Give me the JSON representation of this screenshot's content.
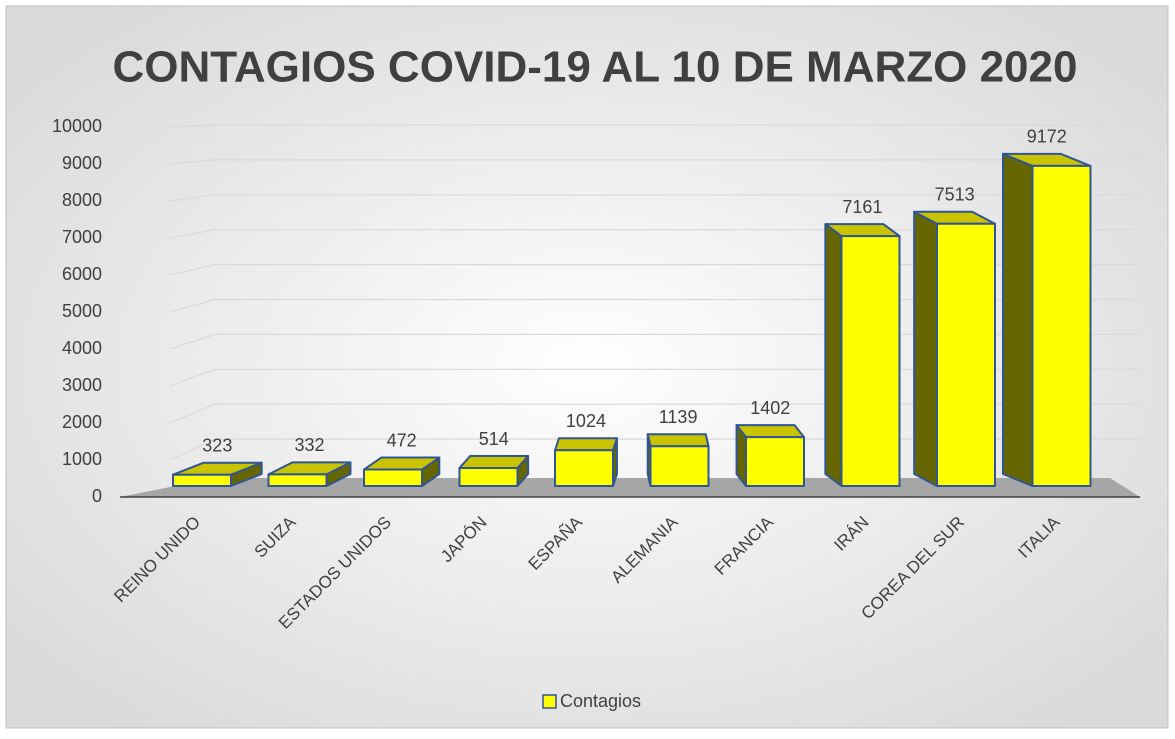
{
  "chart_data": {
    "type": "bar3d",
    "title": "CONTAGIOS COVID-19 AL 10 DE MARZO 2020",
    "categories": [
      "REINO UNIDO",
      "SUIZA",
      "ESTADOS UNIDOS",
      "JAPÓN",
      "ESPAÑA",
      "ALEMANIA",
      "FRANCIA",
      "IRÁN",
      "COREA DEL SUR",
      "ITALIA"
    ],
    "series": [
      {
        "name": "Contagios",
        "color": "#ffff00",
        "values": [
          323,
          332,
          472,
          514,
          1024,
          1139,
          1402,
          7161,
          7513,
          9172
        ]
      }
    ],
    "ylim": [
      0,
      10000
    ],
    "yticks": [
      0,
      1000,
      2000,
      3000,
      4000,
      5000,
      6000,
      7000,
      8000,
      9000,
      10000
    ],
    "grid": true,
    "legend": "bottom"
  }
}
